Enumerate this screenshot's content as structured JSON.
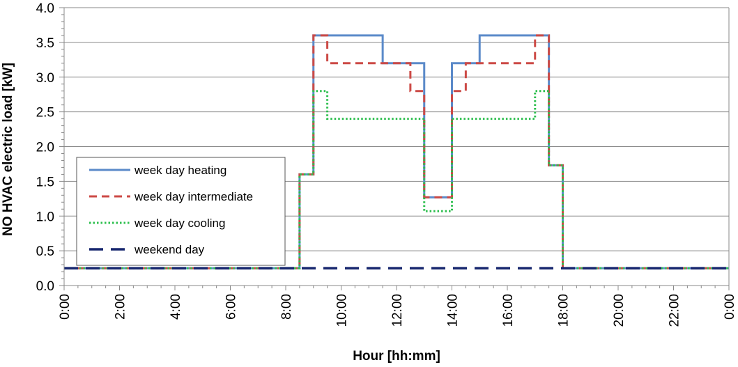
{
  "chart_data": {
    "type": "line",
    "step": true,
    "xlabel": "Hour [hh:mm]",
    "ylabel": "NO HVAC electric load [kW]",
    "xlim": [
      0,
      24
    ],
    "ylim": [
      0,
      4.0
    ],
    "x_ticks": [
      0,
      2,
      4,
      6,
      8,
      10,
      12,
      14,
      16,
      18,
      20,
      22,
      24
    ],
    "x_tick_labels": [
      "0:00",
      "2:00",
      "4:00",
      "6:00",
      "8:00",
      "10:00",
      "12:00",
      "14:00",
      "16:00",
      "18:00",
      "20:00",
      "22:00",
      "0:00"
    ],
    "x_minor_step": 0.5,
    "y_ticks": [
      0,
      0.5,
      1.0,
      1.5,
      2.0,
      2.5,
      3.0,
      3.5,
      4.0
    ],
    "y_tick_labels": [
      "0.0",
      "0.5",
      "1.0",
      "1.5",
      "2.0",
      "2.5",
      "3.0",
      "3.5",
      "4.0"
    ],
    "y_minor_step": 0.1,
    "grid": "horizontal major",
    "legend_position": "lower-left",
    "series": [
      {
        "name": "week day heating",
        "color": "#5B8AC9",
        "dash": "solid",
        "x": [
          0,
          8.5,
          9,
          11.5,
          13,
          14,
          15,
          17.5,
          18,
          24
        ],
        "y": [
          0.25,
          1.6,
          3.6,
          3.2,
          1.27,
          3.2,
          3.6,
          1.73,
          0.25,
          0.25
        ]
      },
      {
        "name": "week day intermediate",
        "color": "#CC4A46",
        "dash": "dashed",
        "x": [
          0,
          8.5,
          9,
          9.5,
          12.5,
          13,
          14,
          14.5,
          17,
          17.5,
          18,
          24
        ],
        "y": [
          0.25,
          1.6,
          3.6,
          3.2,
          2.8,
          1.27,
          2.8,
          3.2,
          3.6,
          1.73,
          0.25,
          0.25
        ]
      },
      {
        "name": "week day cooling",
        "color": "#2DBF4E",
        "dash": "dotted",
        "x": [
          0,
          8.5,
          9,
          9.5,
          13,
          14,
          17,
          17.5,
          18,
          24
        ],
        "y": [
          0.25,
          1.6,
          2.8,
          2.4,
          1.07,
          2.4,
          2.8,
          1.73,
          0.25,
          0.25
        ]
      },
      {
        "name": "weekend day",
        "color": "#16266E",
        "dash": "longdash",
        "x": [
          0,
          24
        ],
        "y": [
          0.25,
          0.25
        ]
      }
    ]
  }
}
